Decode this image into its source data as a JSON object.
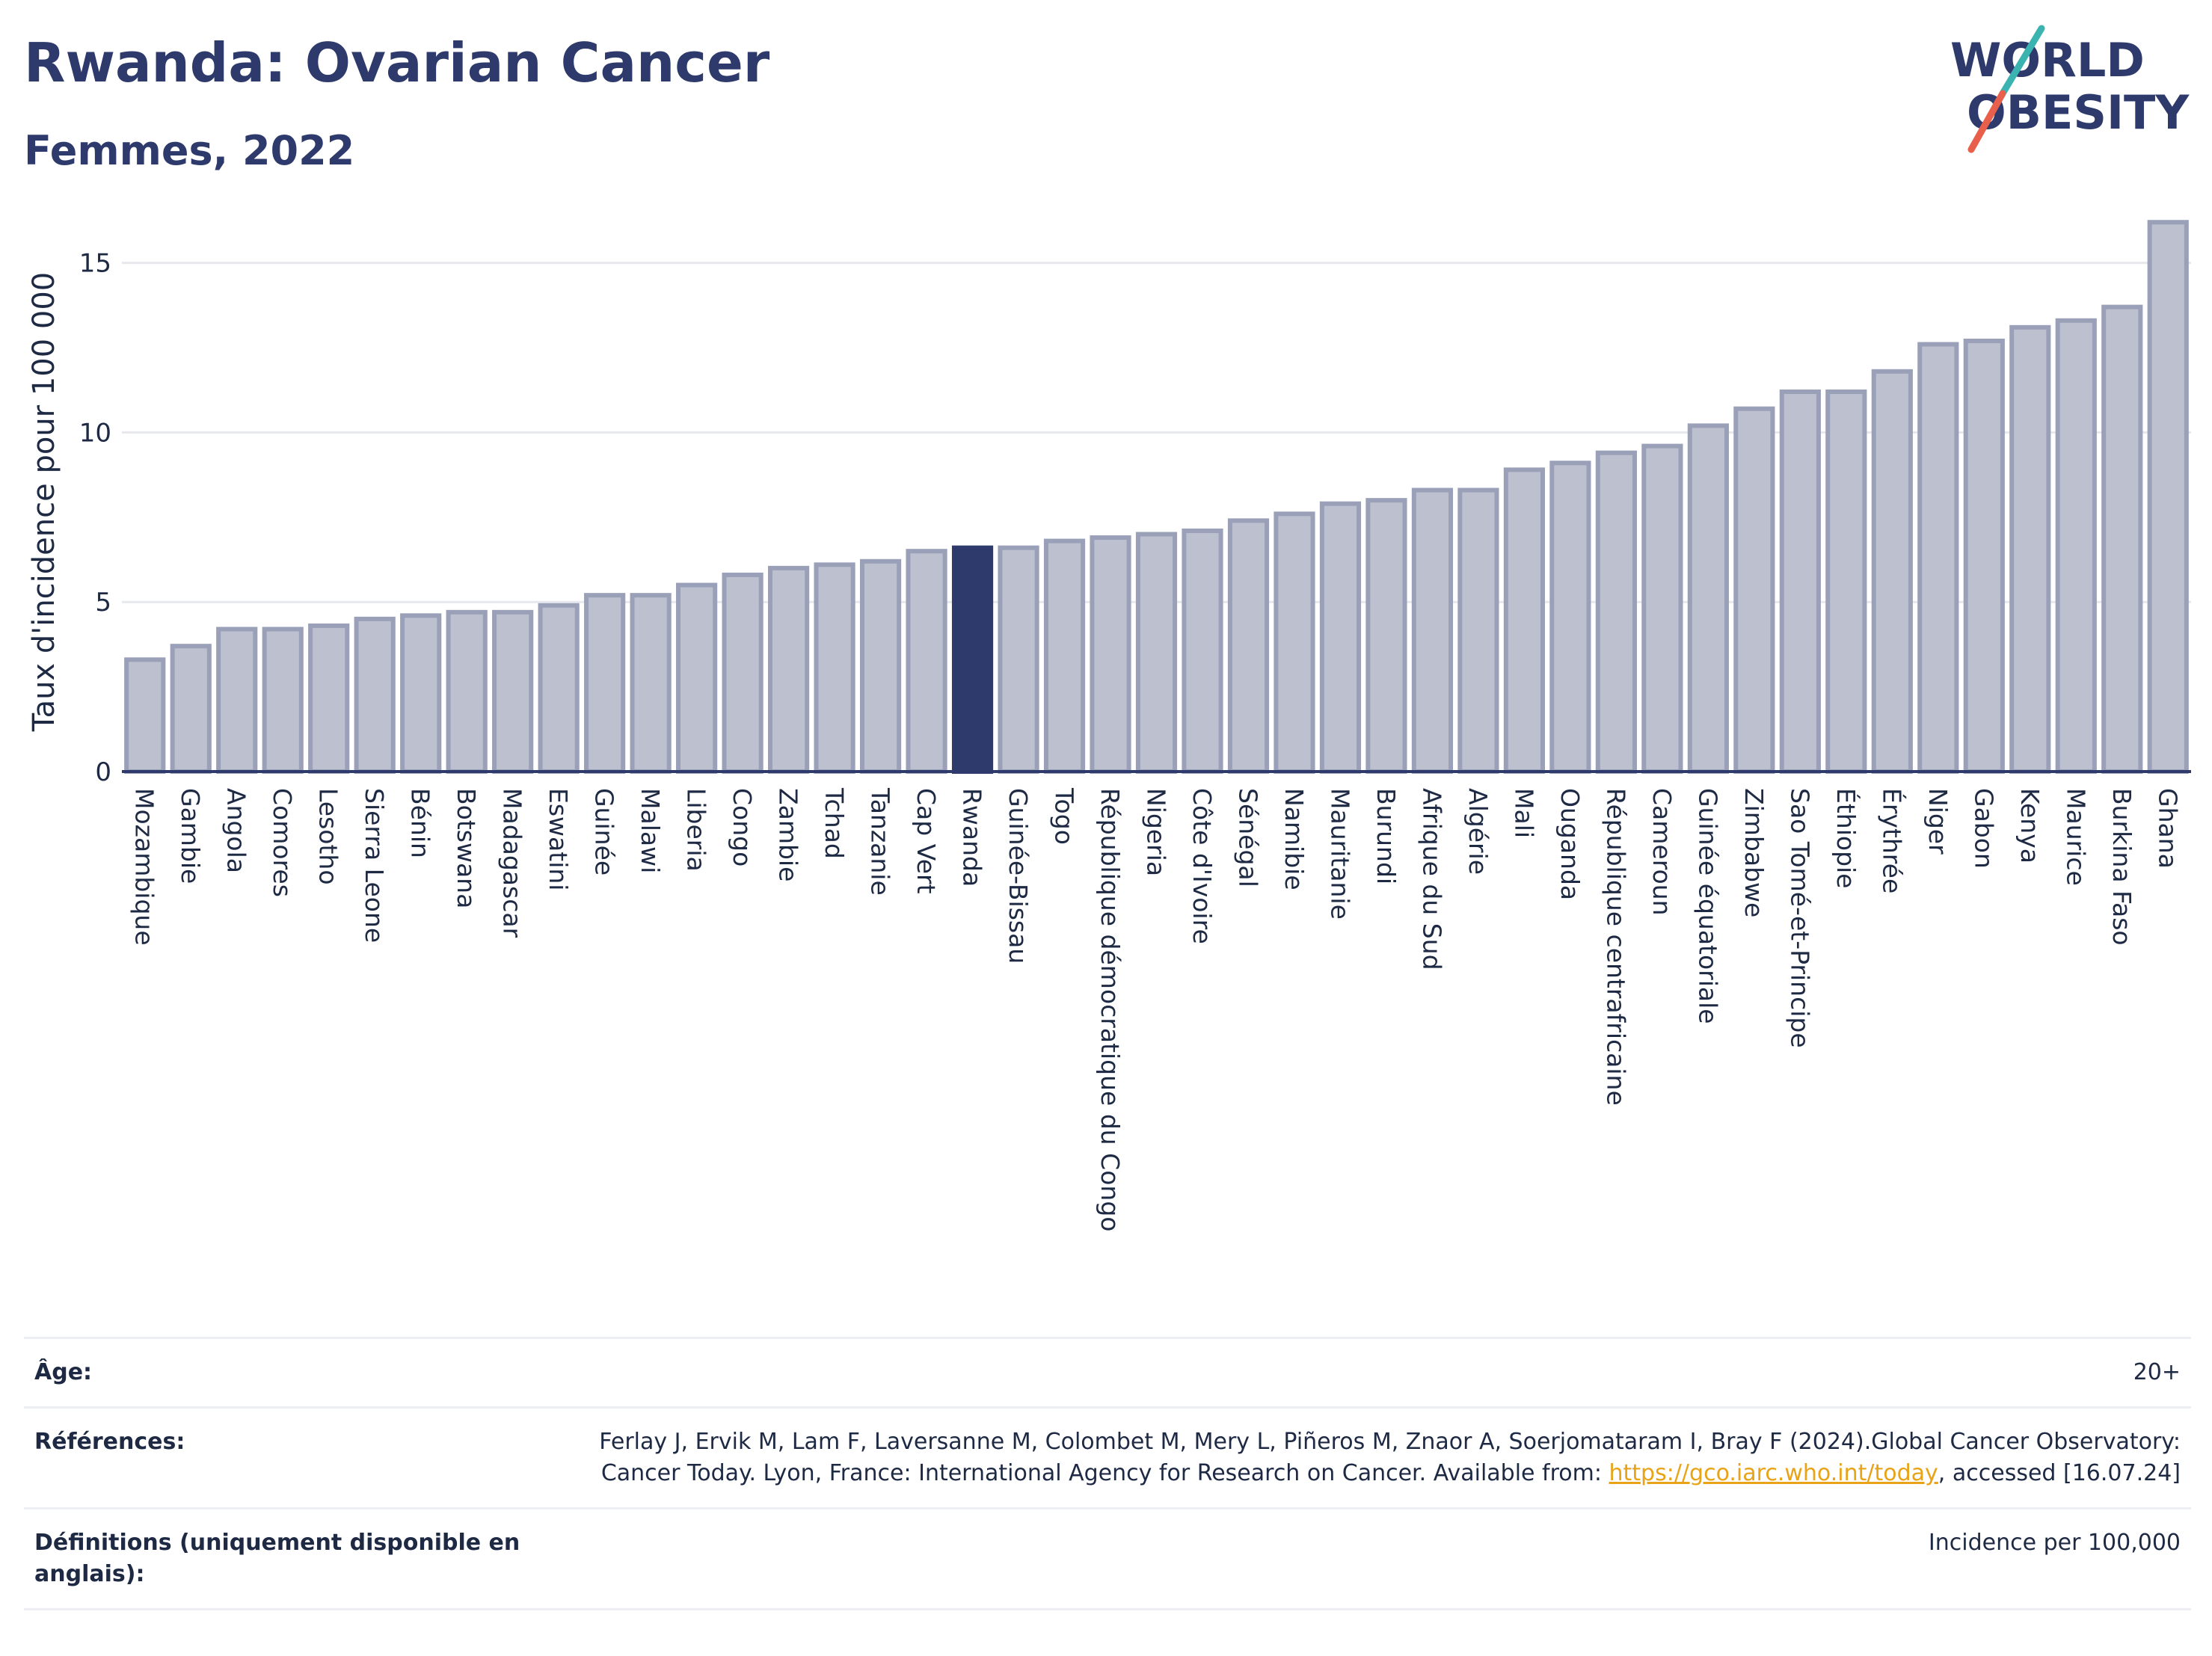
{
  "header": {
    "title": "Rwanda: Ovarian Cancer",
    "subtitle": "Femmes, 2022"
  },
  "logo": {
    "line1": "WORLD",
    "line2": "OBESITY",
    "colors": {
      "text": "#2d3a6b",
      "slash_top": "#3bb3b0",
      "slash_bottom": "#e8604c"
    }
  },
  "chart_data": {
    "type": "bar",
    "title": "Rwanda: Ovarian Cancer",
    "subtitle": "Femmes, 2022",
    "xlabel": "",
    "ylabel": "Taux d'incidence pour 100 000",
    "ylim": [
      0,
      16.8
    ],
    "yticks": [
      0,
      5,
      10,
      15
    ],
    "grid": true,
    "highlight": "Rwanda",
    "colors": {
      "bar": "#bcc0cf",
      "bar_border": "#9aa0b8",
      "highlight": "#2d3a6b",
      "axis": "#2d3a6b",
      "grid": "#e6e8ee"
    },
    "categories": [
      "Mozambique",
      "Gambie",
      "Angola",
      "Comores",
      "Lesotho",
      "Sierra Leone",
      "Bénin",
      "Botswana",
      "Madagascar",
      "Eswatini",
      "Guinée",
      "Malawi",
      "Liberia",
      "Congo",
      "Zambie",
      "Tchad",
      "Tanzanie",
      "Cap Vert",
      "Rwanda",
      "Guinée-Bissau",
      "Togo",
      "République démocratique du Congo",
      "Nigeria",
      "Côte d'Ivoire",
      "Sénégal",
      "Namibie",
      "Mauritanie",
      "Burundi",
      "Afrique du Sud",
      "Algérie",
      "Mali",
      "Ouganda",
      "République centrafricaine",
      "Cameroun",
      "Guinée équatoriale",
      "Zimbabwe",
      "Sao Tomé-et-Principe",
      "Éthiopie",
      "Érythrée",
      "Niger",
      "Gabon",
      "Kenya",
      "Maurice",
      "Burkina Faso",
      "Ghana"
    ],
    "values": [
      3.3,
      3.7,
      4.2,
      4.2,
      4.3,
      4.5,
      4.6,
      4.7,
      4.7,
      4.9,
      5.2,
      5.2,
      5.5,
      5.8,
      6.0,
      6.1,
      6.2,
      6.5,
      6.6,
      6.6,
      6.8,
      6.9,
      7.0,
      7.1,
      7.4,
      7.6,
      7.9,
      8.0,
      8.3,
      8.3,
      8.9,
      9.1,
      9.4,
      9.6,
      10.2,
      10.7,
      11.2,
      11.2,
      11.8,
      12.6,
      12.7,
      13.1,
      13.3,
      13.7,
      16.2
    ]
  },
  "info": {
    "age": {
      "label": "Âge:",
      "value": "20+"
    },
    "references": {
      "label": "Références:",
      "text_before": "Ferlay J, Ervik M, Lam F, Laversanne M, Colombet M, Mery L, Piñeros M, Znaor A, Soerjomataram I, Bray F (2024).Global Cancer Observatory: Cancer Today. Lyon, France: International Agency for Research on Cancer. Available from: ",
      "link_text": "https://gco.iarc.who.int/today",
      "text_after": ", accessed [16.07.24]"
    },
    "definitions": {
      "label": "Définitions (uniquement disponible en anglais):",
      "value": "Incidence per 100,000"
    }
  }
}
